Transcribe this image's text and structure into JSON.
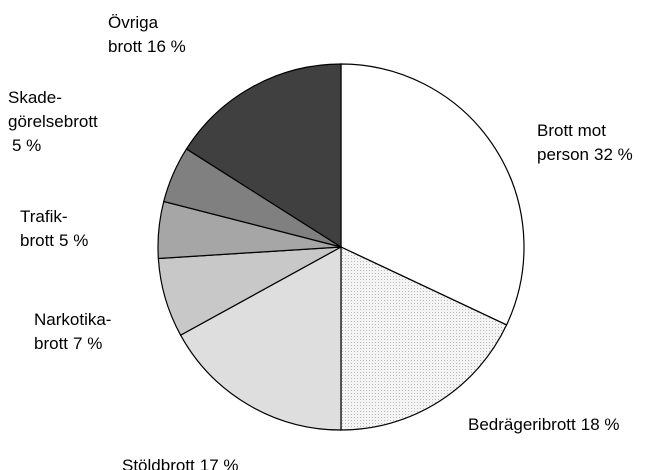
{
  "chart_data": {
    "type": "pie",
    "categories": [
      [
        "Brott mot",
        "person"
      ],
      [
        "Bedrägeribrott"
      ],
      [
        "Stöldbrott"
      ],
      [
        "Narkotika-",
        "brott"
      ],
      [
        "Trafik-",
        "brott"
      ],
      [
        "Skade-",
        "görelsebrott"
      ],
      [
        "Övriga",
        "brott"
      ]
    ],
    "values": [
      32,
      18,
      17,
      7,
      5,
      5,
      16
    ],
    "value_labels": [
      "32 %",
      "18 %",
      "17 %",
      "7 %",
      "5 %",
      "5 %",
      "16 %"
    ],
    "colors": [
      "#ffffff",
      "#f0f0f0",
      "#dedede",
      "#c8c8c8",
      "#a6a6a6",
      "#808080",
      "#404040"
    ]
  }
}
